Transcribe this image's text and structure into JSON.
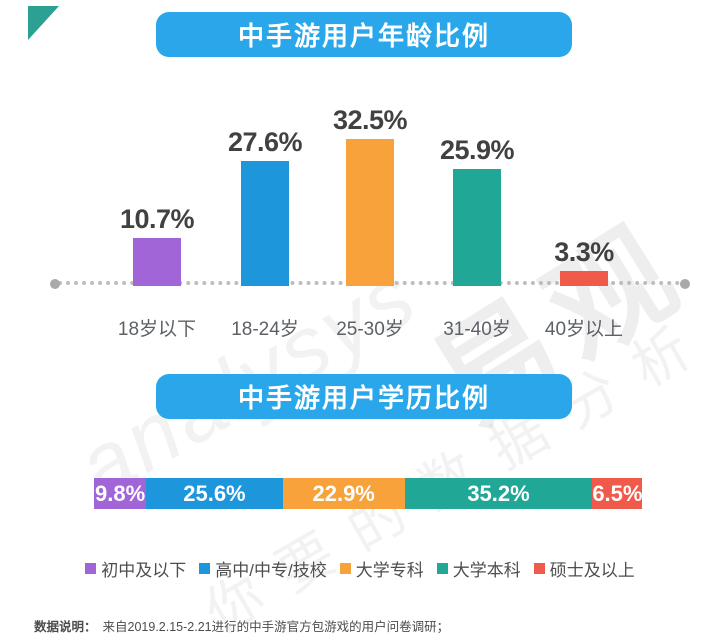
{
  "brand": {
    "triangle_color": "#2ba093"
  },
  "titles": {
    "age_pill_bg": "#29a7ea",
    "edu_pill_bg": "#29a7ea"
  },
  "chart_data": [
    {
      "type": "bar",
      "title": "中手游用户年龄比例",
      "categories": [
        "18岁以下",
        "18-24岁",
        "25-30岁",
        "31-40岁",
        "40岁以上"
      ],
      "values": [
        10.7,
        27.6,
        32.5,
        25.9,
        3.3
      ],
      "value_labels": [
        "10.7%",
        "27.6%",
        "32.5%",
        "25.9%",
        "3.3%"
      ],
      "colors": [
        "#a265d8",
        "#1e96db",
        "#f8a23b",
        "#21a795",
        "#f05a4a"
      ],
      "xlabel": "",
      "ylabel": "",
      "ylim": [
        0,
        35
      ],
      "grid": false,
      "baseline_style": "dotted-with-end-dots",
      "legend_position": "none"
    },
    {
      "type": "bar",
      "subtype": "stacked-horizontal",
      "title": "中手游用户学历比例",
      "categories": [
        "初中及以下",
        "高中/中专/技校",
        "大学专科",
        "大学本科",
        "硕士及以上"
      ],
      "values": [
        9.8,
        25.6,
        22.9,
        35.2,
        6.5
      ],
      "value_labels": [
        "9.8%",
        "25.6%",
        "22.9%",
        "35.2%",
        "6.5%"
      ],
      "colors": [
        "#a265d8",
        "#1e96db",
        "#f8a23b",
        "#21a795",
        "#f05a4a"
      ],
      "xlim": [
        0,
        100
      ],
      "grid": false,
      "legend_position": "bottom"
    }
  ],
  "watermark": {
    "cn_big": "易观",
    "script": "analysys",
    "cn_small": "你要的数据分析"
  },
  "footnote": {
    "label": "数据说明：",
    "text": "来自2019.2.15-2.21进行的中手游官方包游戏的用户问卷调研；"
  }
}
